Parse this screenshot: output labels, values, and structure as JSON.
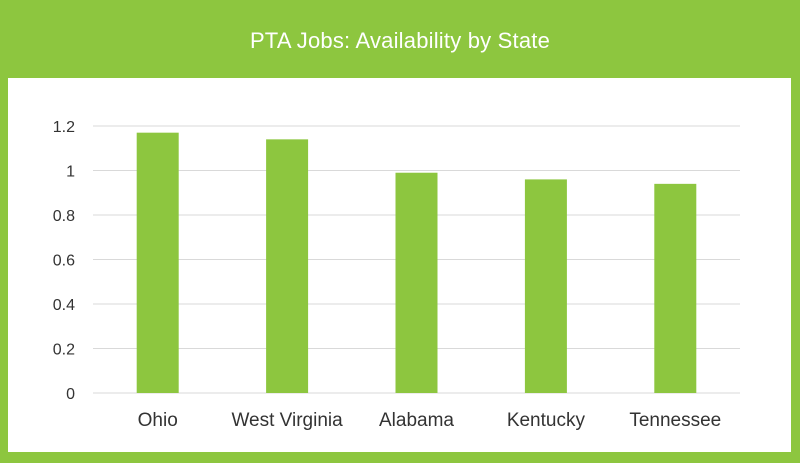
{
  "colors": {
    "background": "#8dc63f",
    "panel": "#ffffff",
    "bar": "#8dc63f",
    "grid": "#d9d9d9",
    "text": "#333333",
    "title_text": "#ffffff"
  },
  "chart_data": {
    "type": "bar",
    "title": "PTA Jobs: Availability by State",
    "xlabel": "",
    "ylabel": "",
    "categories": [
      "Ohio",
      "West Virginia",
      "Alabama",
      "Kentucky",
      "Tennessee"
    ],
    "values": [
      1.17,
      1.14,
      0.99,
      0.96,
      0.94
    ],
    "ylim": [
      0,
      1.2
    ],
    "yticks": [
      "0",
      "0.2",
      "0.4",
      "0.6",
      "0.8",
      "1",
      "1.2"
    ],
    "grid": true,
    "legend": "none"
  }
}
